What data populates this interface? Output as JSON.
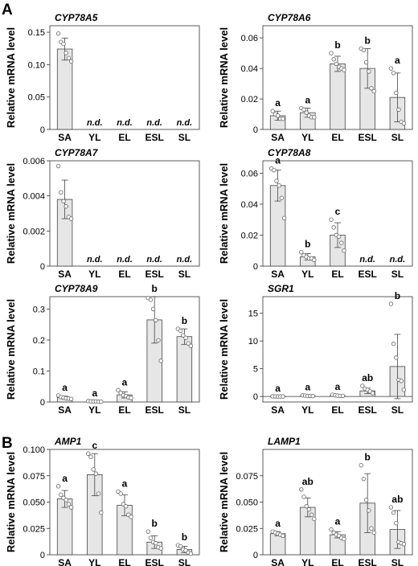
{
  "panel_letters": [
    "A",
    "B"
  ],
  "chart_data": [
    {
      "type": "bar",
      "title": "CYP78A5",
      "ylabel": "Relative mRNA level",
      "xlabel": "",
      "categories": [
        "SA",
        "YL",
        "EL",
        "ESL",
        "SL"
      ],
      "values": [
        0.124,
        null,
        null,
        null,
        null
      ],
      "error": [
        0.017,
        null,
        null,
        null,
        null
      ],
      "points": [
        [
          0.148,
          0.135,
          0.132,
          0.118,
          0.11,
          0.105
        ],
        [],
        [],
        [],
        []
      ],
      "labels": [
        "",
        "n.d.",
        "n.d.",
        "n.d.",
        "n.d."
      ],
      "ylim": [
        0,
        0.16
      ],
      "yticks": [
        0,
        0.05,
        0.1,
        0.15
      ],
      "ytick_labels": [
        "0",
        "0.05",
        "0.10",
        "0.15"
      ]
    },
    {
      "type": "bar",
      "title": "CYP78A6",
      "ylabel": "Relative mRNA level",
      "xlabel": "",
      "categories": [
        "SA",
        "YL",
        "EL",
        "ESL",
        "SL"
      ],
      "values": [
        0.009,
        0.011,
        0.043,
        0.04,
        0.021
      ],
      "error": [
        0.003,
        0.003,
        0.005,
        0.013,
        0.016
      ],
      "points": [
        [
          0.012,
          0.01,
          0.009,
          0.007,
          0.007
        ],
        [
          0.014,
          0.013,
          0.011,
          0.009,
          0.008,
          0.008
        ],
        [
          0.05,
          0.046,
          0.043,
          0.041,
          0.04,
          0.039
        ],
        [
          0.053,
          0.052,
          0.044,
          0.038,
          0.027,
          0.025
        ],
        [
          0.04,
          0.037,
          0.024,
          0.013,
          0.005,
          0.004
        ]
      ],
      "labels": [
        "a",
        "a",
        "b",
        "b",
        "a"
      ],
      "ylim": [
        0,
        0.068
      ],
      "yticks": [
        0,
        0.02,
        0.04,
        0.06
      ],
      "ytick_labels": [
        "0",
        "0.02",
        "0.04",
        "0.06"
      ]
    },
    {
      "type": "bar",
      "title": "CYP78A7",
      "ylabel": "Relative mRNA level",
      "xlabel": "",
      "categories": [
        "SA",
        "YL",
        "EL",
        "ESL",
        "SL"
      ],
      "values": [
        0.0038,
        null,
        null,
        null,
        null
      ],
      "error": [
        0.0011,
        null,
        null,
        null,
        null
      ],
      "points": [
        [
          0.0057,
          0.0042,
          0.0037,
          0.0034,
          0.0028,
          0.0027
        ],
        [],
        [],
        [],
        []
      ],
      "labels": [
        "",
        "n.d.",
        "n.d.",
        "n.d.",
        "n.d."
      ],
      "ylim": [
        0,
        0.006
      ],
      "yticks": [
        0,
        0.002,
        0.004,
        0.006
      ],
      "ytick_labels": [
        "0",
        "0.002",
        "0.004",
        "0.006"
      ]
    },
    {
      "type": "bar",
      "title": "CYP78A8",
      "ylabel": "Relative mRNA level",
      "xlabel": "",
      "categories": [
        "SA",
        "YL",
        "EL",
        "ESL",
        "SL"
      ],
      "values": [
        0.052,
        0.006,
        0.02,
        null,
        null
      ],
      "error": [
        0.01,
        0.002,
        0.008,
        null,
        null
      ],
      "points": [
        [
          0.063,
          0.062,
          0.055,
          0.052,
          0.044,
          0.031
        ],
        [
          0.009,
          0.007,
          0.006,
          0.005,
          0.005,
          0.004
        ],
        [
          0.03,
          0.025,
          0.02,
          0.019,
          0.015,
          0.01
        ],
        [],
        []
      ],
      "labels": [
        "a",
        "b",
        "c",
        "n.d.",
        "n.d."
      ],
      "ylim": [
        0,
        0.068
      ],
      "yticks": [
        0,
        0.02,
        0.04,
        0.06
      ],
      "ytick_labels": [
        "0",
        "0.02",
        "0.04",
        "0.06"
      ]
    },
    {
      "type": "bar",
      "title": "CYP78A9",
      "ylabel": "Relative mRNA level",
      "xlabel": "",
      "categories": [
        "SA",
        "YL",
        "EL",
        "ESL",
        "SL"
      ],
      "values": [
        0.014,
        0.002,
        0.023,
        0.265,
        0.211
      ],
      "error": [
        0.005,
        0.001,
        0.01,
        0.075,
        0.025
      ],
      "points": [
        [
          0.021,
          0.016,
          0.014,
          0.012,
          0.011,
          0.01
        ],
        [
          0.003,
          0.002,
          0.002,
          0.002,
          0.001,
          0.001
        ],
        [
          0.038,
          0.029,
          0.022,
          0.019,
          0.015,
          0.013
        ],
        [
          0.336,
          0.33,
          0.3,
          0.264,
          0.199,
          0.133
        ],
        [
          0.236,
          0.23,
          0.215,
          0.207,
          0.189,
          0.181
        ]
      ],
      "labels": [
        "a",
        "a",
        "a",
        "b",
        "b"
      ],
      "ylim": [
        0,
        0.34
      ],
      "yticks": [
        0,
        0.1,
        0.2,
        0.3
      ],
      "ytick_labels": [
        "0",
        "0.1",
        "0.2",
        "0.3"
      ]
    },
    {
      "type": "bar",
      "title": "SGR1",
      "ylabel": "Relative mRNA level",
      "xlabel": "",
      "categories": [
        "SA",
        "YL",
        "EL",
        "ESL",
        "SL"
      ],
      "values": [
        0.0,
        0.1,
        0.15,
        1.0,
        5.4
      ],
      "error": [
        0.05,
        0.05,
        0.1,
        0.5,
        5.8
      ],
      "points": [
        [
          0.02,
          0.01,
          0.0,
          0.0,
          0.0
        ],
        [
          0.2,
          0.15,
          0.1,
          0.1,
          0.05
        ],
        [
          0.3,
          0.2,
          0.15,
          0.1,
          0.1
        ],
        [
          1.9,
          1.4,
          1.2,
          0.9,
          0.6
        ],
        [
          16.7,
          9.5,
          7.0,
          3.0,
          2.8,
          1.2
        ]
      ],
      "labels": [
        "a",
        "a",
        "a",
        "ab",
        "b"
      ],
      "ylim": [
        -1.0,
        18.0
      ],
      "yticks": [
        0,
        5,
        10,
        15
      ],
      "ytick_labels": [
        "0",
        "5",
        "10",
        "15"
      ]
    },
    {
      "type": "bar",
      "title": "AMP1",
      "ylabel": "Relative mRNA level",
      "xlabel": "",
      "categories": [
        "SA",
        "YL",
        "EL",
        "ESL",
        "SL"
      ],
      "values": [
        0.053,
        0.076,
        0.047,
        0.012,
        0.005
      ],
      "error": [
        0.008,
        0.02,
        0.01,
        0.006,
        0.003
      ],
      "points": [
        [
          0.065,
          0.057,
          0.054,
          0.052,
          0.048,
          0.045
        ],
        [
          0.096,
          0.093,
          0.081,
          0.077,
          0.058,
          0.04
        ],
        [
          0.06,
          0.058,
          0.048,
          0.046,
          0.038,
          0.036
        ],
        [
          0.022,
          0.016,
          0.012,
          0.011,
          0.007,
          0.006
        ],
        [
          0.009,
          0.008,
          0.005,
          0.004,
          0.002,
          0.001
        ]
      ],
      "labels": [
        "a",
        "c",
        "a",
        "b",
        "b"
      ],
      "ylim": [
        0,
        0.1
      ],
      "yticks": [
        0,
        0.025,
        0.05,
        0.075,
        0.1
      ],
      "ytick_labels": [
        "0",
        "0.025",
        "0.050",
        "0.075",
        "0.100"
      ]
    },
    {
      "type": "bar",
      "title": "LAMP1",
      "ylabel": "Relative mRNA level",
      "xlabel": "",
      "categories": [
        "SA",
        "YL",
        "EL",
        "ESL",
        "SL"
      ],
      "values": [
        0.02,
        0.045,
        0.019,
        0.049,
        0.024
      ],
      "error": [
        0.002,
        0.009,
        0.003,
        0.028,
        0.018
      ],
      "points": [
        [
          0.022,
          0.021,
          0.02,
          0.019,
          0.018
        ],
        [
          0.062,
          0.055,
          0.046,
          0.043,
          0.038,
          0.034
        ],
        [
          0.024,
          0.021,
          0.019,
          0.018,
          0.016,
          0.015
        ],
        [
          0.085,
          0.072,
          0.052,
          0.042,
          0.025,
          0.021
        ],
        [
          0.045,
          0.04,
          0.03,
          0.012,
          0.011,
          0.01
        ]
      ],
      "labels": [
        "a",
        "ab",
        "a",
        "b",
        "ab"
      ],
      "ylim": [
        0,
        0.1
      ],
      "yticks": [
        0,
        0.025,
        0.05,
        0.075
      ],
      "ytick_labels": [
        "0",
        "0.025",
        "0.050",
        "0.075"
      ]
    }
  ]
}
